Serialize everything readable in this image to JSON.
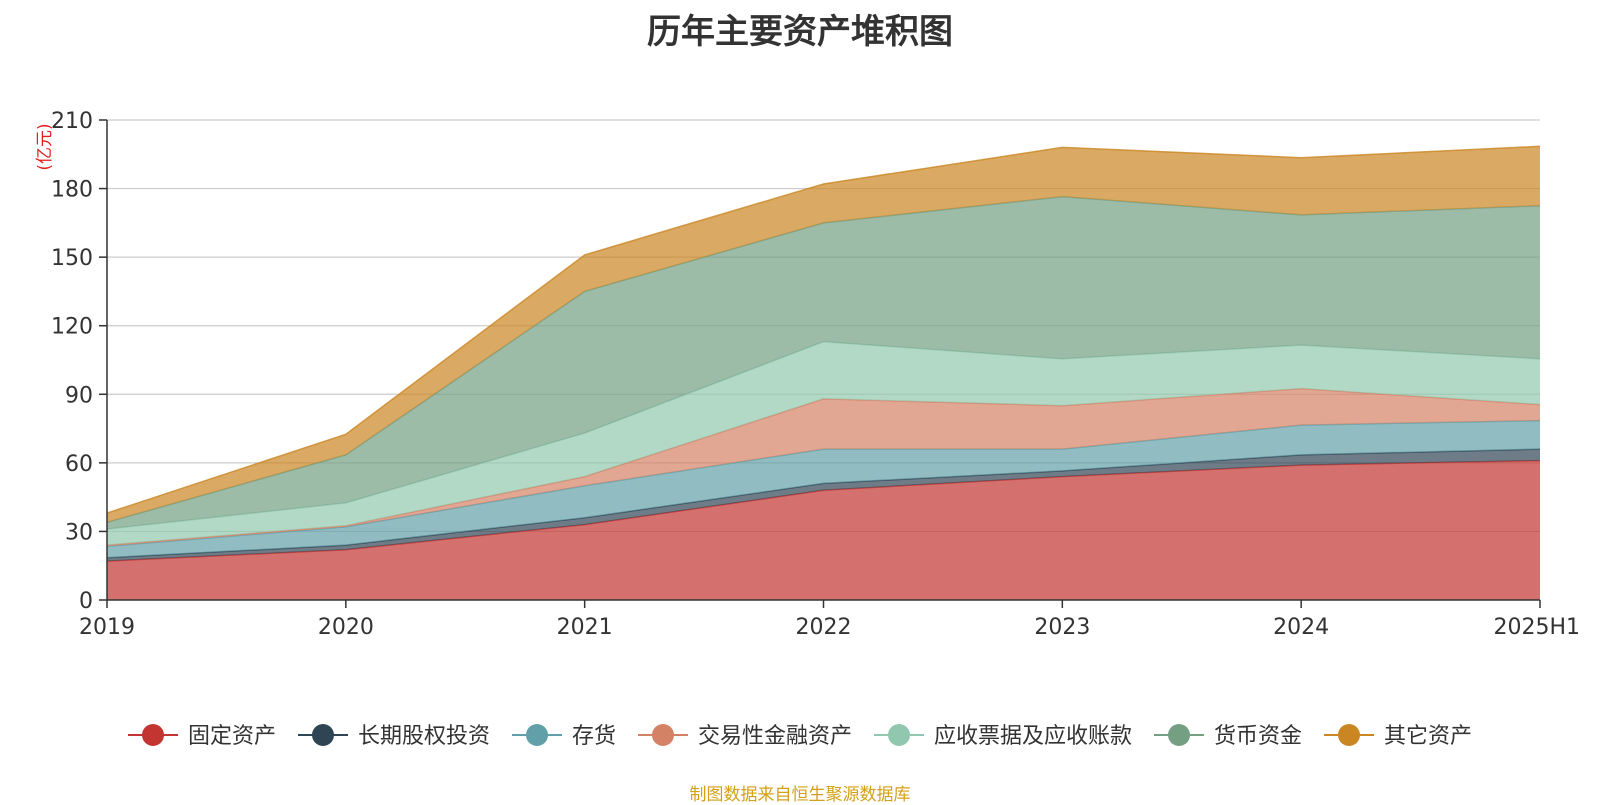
{
  "chart_data": {
    "type": "area",
    "stacked": true,
    "title": "历年主要资产堆积图",
    "ylabel": "(亿元)",
    "categories": [
      "2019",
      "2020",
      "2021",
      "2022",
      "2023",
      "2024",
      "2025H1"
    ],
    "ylim": [
      0,
      210
    ],
    "yticks": [
      0,
      30,
      60,
      90,
      120,
      150,
      180,
      210
    ],
    "grid": true,
    "legend_position": "bottom",
    "series": [
      {
        "name": "固定资产",
        "color": "#c23531",
        "values": [
          17,
          22,
          33,
          48,
          54,
          59,
          61
        ]
      },
      {
        "name": "长期股权投资",
        "color": "#2f4554",
        "values": [
          1.5,
          2,
          3,
          3,
          2.5,
          4.5,
          5
        ]
      },
      {
        "name": "存货",
        "color": "#61a0a8",
        "values": [
          5,
          8,
          14,
          15,
          9.5,
          13,
          12.5
        ]
      },
      {
        "name": "交易性金融资产",
        "color": "#d48265",
        "values": [
          0.5,
          0.5,
          4,
          22,
          19,
          16,
          7
        ]
      },
      {
        "name": "应收票据及应收账款",
        "color": "#91c7ae",
        "values": [
          7,
          10,
          19,
          25,
          20.5,
          19,
          20
        ]
      },
      {
        "name": "货币资金",
        "color": "#749f83",
        "values": [
          3,
          21,
          62,
          52,
          71,
          57,
          67
        ]
      },
      {
        "name": "其它资产",
        "color": "#ca8622",
        "values": [
          4,
          9,
          16,
          17,
          21.5,
          25,
          26
        ]
      }
    ]
  },
  "footer": {
    "source": "制图数据来自恒生聚源数据库"
  }
}
